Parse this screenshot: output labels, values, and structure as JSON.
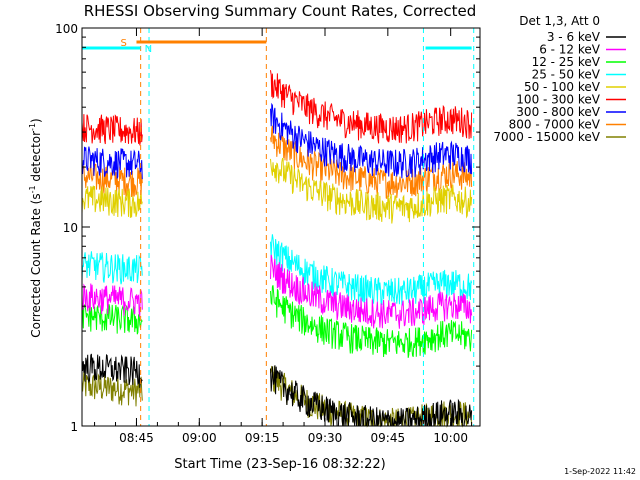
{
  "chart_data": {
    "type": "line",
    "title": "RHESSI Observing Summary Count Rates, Corrected",
    "xlabel": "Start Time (23-Sep-16 08:32:22)",
    "ylabel_main": "Corrected Count Rate (s",
    "ylabel_sup": "-1",
    "ylabel_mid": " detector",
    "ylabel_sup2": "-1",
    "ylabel_end": ")",
    "yscale": "log",
    "ylim": [
      1,
      100
    ],
    "xlim": [
      "08:32",
      "10:07"
    ],
    "xticks": [
      "08:45",
      "09:00",
      "09:15",
      "09:30",
      "09:45",
      "10:00"
    ],
    "yticks": [
      "1",
      "10",
      "100"
    ],
    "legend_title": "Det 1,3, Att 0",
    "legend_position": "right",
    "timestamp": "1-Sep-2022 11:42",
    "series": [
      {
        "name": "3 - 6 keV",
        "color": "#000000",
        "base": 2.0,
        "floor": 1.0
      },
      {
        "name": "6 - 12 keV",
        "color": "#ff00ff",
        "base": 4.5,
        "floor": 3.5
      },
      {
        "name": "12 - 25 keV",
        "color": "#00ff00",
        "base": 3.6,
        "floor": 2.5
      },
      {
        "name": "25 - 50 keV",
        "color": "#00ffff",
        "base": 6.5,
        "floor": 4.5
      },
      {
        "name": "50 - 100 keV",
        "color": "#e0d000",
        "base": 14,
        "floor": 12
      },
      {
        "name": "100 - 300 keV",
        "color": "#ff0000",
        "base": 32,
        "floor": 30
      },
      {
        "name": "300 - 800 keV",
        "color": "#0000ff",
        "base": 22,
        "floor": 20
      },
      {
        "name": "800 - 7000 keV",
        "color": "#ff8000",
        "base": 18,
        "floor": 16
      },
      {
        "name": "7000 - 15000 keV",
        "color": "#808000",
        "base": 1.6,
        "floor": 1.0
      }
    ],
    "flags": [
      {
        "label": "S",
        "color": "#ff8000",
        "start": "08:45",
        "end": "09:16"
      },
      {
        "label": "N",
        "color": "#00ffff",
        "start": "08:32",
        "end": "08:46"
      },
      {
        "label": "",
        "color": "#00ffff",
        "start": "09:54",
        "end": "10:05"
      }
    ]
  }
}
